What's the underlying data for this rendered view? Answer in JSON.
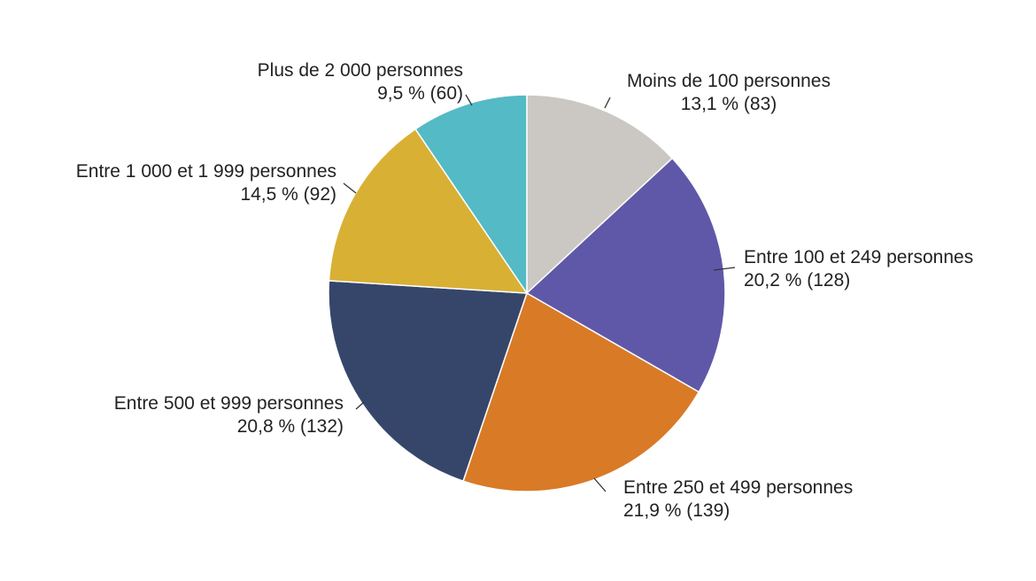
{
  "chart_data": {
    "type": "pie",
    "slices": [
      {
        "label": "Moins de 100 personnes",
        "value_text": "13,1 % (83)",
        "percent": 13.1,
        "count": 83,
        "color": "#cbc7c3"
      },
      {
        "label": "Entre 100 et 249 personnes",
        "value_text": "20,2 % (128)",
        "percent": 20.2,
        "count": 128,
        "color": "#5f58a8"
      },
      {
        "label": "Entre 250 et 499 personnes",
        "value_text": "21,9 % (139)",
        "percent": 21.9,
        "count": 139,
        "color": "#d97a27"
      },
      {
        "label": "Entre 500 et 999 personnes",
        "value_text": "20,8 % (132)",
        "percent": 20.8,
        "count": 132,
        "color": "#36466b"
      },
      {
        "label": "Entre 1 000 et 1 999 personnes",
        "value_text": "14,5 % (92)",
        "percent": 14.5,
        "count": 92,
        "color": "#d8b034"
      },
      {
        "label": "Plus de 2 000 personnes",
        "value_text": "9,5 % (60)",
        "percent": 9.5,
        "count": 60,
        "color": "#54bac6"
      }
    ],
    "start_angle": "top",
    "direction": "clockwise",
    "legend": "none"
  }
}
